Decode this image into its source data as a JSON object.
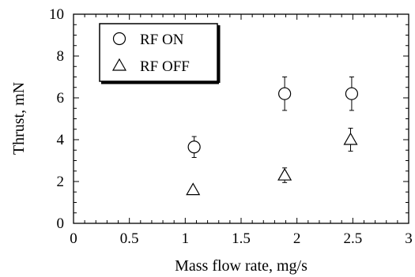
{
  "chart_data": {
    "type": "scatter",
    "xlabel": "Mass flow rate, mg/s",
    "ylabel": "Thrust, mN",
    "xlim": [
      0,
      3
    ],
    "ylim": [
      0,
      10
    ],
    "xticks": [
      "0",
      "0.5",
      "1",
      "1.5",
      "2",
      "2.5",
      "3"
    ],
    "yticks": [
      "0",
      "2",
      "4",
      "6",
      "8",
      "10"
    ],
    "grid": false,
    "legend_position": "top-left",
    "series": [
      {
        "name": "RF ON",
        "marker": "circle",
        "points": [
          {
            "x": 1.08,
            "y": 3.65,
            "err": 0.5
          },
          {
            "x": 1.89,
            "y": 6.2,
            "err": 0.8
          },
          {
            "x": 2.49,
            "y": 6.2,
            "err": 0.8
          }
        ]
      },
      {
        "name": "RF OFF",
        "marker": "triangle",
        "points": [
          {
            "x": 1.07,
            "y": 1.6,
            "err": 0
          },
          {
            "x": 1.89,
            "y": 2.3,
            "err": 0.35
          },
          {
            "x": 2.48,
            "y": 4.0,
            "err": 0.55
          }
        ]
      }
    ]
  }
}
